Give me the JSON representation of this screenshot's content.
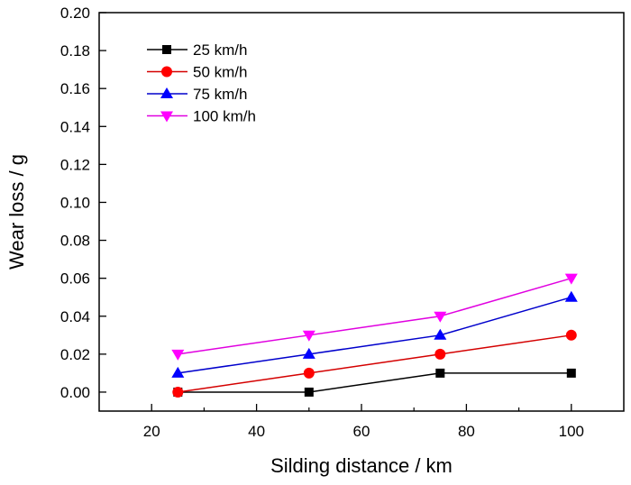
{
  "chart_data": {
    "type": "line",
    "title": "",
    "xlabel": "Silding distance / km",
    "ylabel": "Wear loss / g",
    "xlim": [
      10,
      110
    ],
    "ylim": [
      -0.01,
      0.2
    ],
    "xticks": [
      20,
      40,
      60,
      80,
      100
    ],
    "xtick_labels": [
      "20",
      "40",
      "60",
      "80",
      "100"
    ],
    "x_minor_ticks": [
      30,
      50,
      70,
      90
    ],
    "yticks": [
      0,
      0.02,
      0.04,
      0.06,
      0.08,
      0.1,
      0.12,
      0.14,
      0.16,
      0.18,
      0.2
    ],
    "ytick_labels": [
      "0.00",
      "0.02",
      "0.04",
      "0.06",
      "0.08",
      "0.10",
      "0.12",
      "0.14",
      "0.16",
      "0.18",
      "0.20"
    ],
    "grid": false,
    "legend_position": "top-left",
    "x": [
      25,
      50,
      75,
      100
    ],
    "series": [
      {
        "name": "25 km/h",
        "values": [
          0,
          0,
          0.01,
          0.01
        ],
        "color": "#000000",
        "marker": "square"
      },
      {
        "name": "50 km/h",
        "values": [
          0,
          0.01,
          0.02,
          0.03
        ],
        "color": "#ff0000",
        "line_color": "#d40000",
        "marker": "circle"
      },
      {
        "name": "75 km/h",
        "values": [
          0.01,
          0.02,
          0.03,
          0.05
        ],
        "color": "#0000ff",
        "line_color": "#0000cc",
        "marker": "triangle-up"
      },
      {
        "name": "100 km/h",
        "values": [
          0.02,
          0.03,
          0.04,
          0.06
        ],
        "color": "#ff00ff",
        "line_color": "#e000e0",
        "marker": "triangle-down"
      }
    ]
  }
}
